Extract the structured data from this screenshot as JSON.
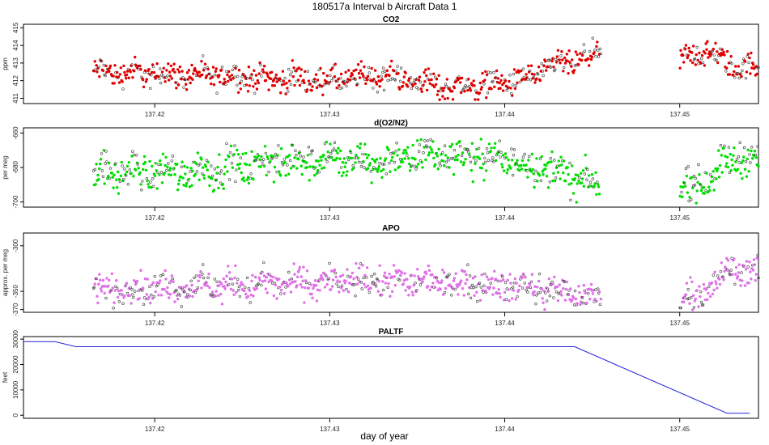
{
  "page": {
    "title": "180517a   Interval b Aircraft Data 1",
    "xlabel": "day of year"
  },
  "chart_data": [
    {
      "type": "scatter",
      "title": "CO2",
      "ylabel": "ppm",
      "color": "#e00000",
      "xlim": [
        137.4125,
        137.4545
      ],
      "ylim": [
        410.7,
        415.2
      ],
      "x_ticks": [
        "137.42",
        "137.43",
        "137.44",
        "137.45"
      ],
      "y_ticks": [
        "411",
        "412",
        "413",
        "414",
        "415"
      ],
      "gap": [
        137.4455,
        137.45
      ],
      "trend": [
        [
          137.4165,
          412.5
        ],
        [
          137.42,
          412.4
        ],
        [
          137.425,
          412.2
        ],
        [
          137.43,
          412.0
        ],
        [
          137.433,
          412.3
        ],
        [
          137.437,
          411.6
        ],
        [
          137.441,
          412.0
        ],
        [
          137.443,
          412.9
        ],
        [
          137.4445,
          413.2
        ],
        [
          137.4455,
          413.5
        ],
        [
          137.45,
          413.1
        ],
        [
          137.4515,
          413.7
        ],
        [
          137.453,
          412.8
        ],
        [
          137.4545,
          412.7
        ]
      ],
      "spread": 0.35
    },
    {
      "type": "scatter",
      "title": "d(O2/N2)",
      "ylabel": "per meg",
      "color": "#00dd00",
      "xlim": [
        137.4125,
        137.4545
      ],
      "ylim": [
        -703,
        -657
      ],
      "x_ticks": [
        "137.42",
        "137.43",
        "137.44",
        "137.45"
      ],
      "y_ticks": [
        "-660",
        "-680",
        "-700"
      ],
      "gap": [
        137.4455,
        137.45
      ],
      "trend": [
        [
          137.4165,
          -683
        ],
        [
          137.422,
          -682
        ],
        [
          137.426,
          -678
        ],
        [
          137.43,
          -674
        ],
        [
          137.432,
          -678
        ],
        [
          137.436,
          -672
        ],
        [
          137.44,
          -675
        ],
        [
          137.443,
          -682
        ],
        [
          137.4445,
          -688
        ],
        [
          137.4455,
          -694
        ],
        [
          137.45,
          -693
        ],
        [
          137.452,
          -684
        ],
        [
          137.453,
          -673
        ],
        [
          137.4545,
          -677
        ]
      ],
      "spread": 5
    },
    {
      "type": "scatter",
      "title": "APO",
      "ylabel": "approx. per meg",
      "color": "#e070e8",
      "xlim": [
        137.4125,
        137.4545
      ],
      "ylim": [
        -373,
        -286
      ],
      "x_ticks": [
        "137.42",
        "137.43",
        "137.44",
        "137.45"
      ],
      "y_ticks": [
        "-300",
        "-350",
        "-370"
      ],
      "gap": [
        137.4455,
        137.45
      ],
      "trend": [
        [
          137.4165,
          -348
        ],
        [
          137.422,
          -345
        ],
        [
          137.43,
          -340
        ],
        [
          137.436,
          -338
        ],
        [
          137.44,
          -343
        ],
        [
          137.443,
          -350
        ],
        [
          137.4455,
          -360
        ],
        [
          137.45,
          -362
        ],
        [
          137.452,
          -345
        ],
        [
          137.453,
          -322
        ],
        [
          137.4545,
          -332
        ]
      ],
      "spread": 8
    },
    {
      "type": "line",
      "title": "PALTF",
      "ylabel": "feet",
      "color": "#2020e0",
      "xlim": [
        137.4125,
        137.4545
      ],
      "ylim": [
        -1200,
        31000
      ],
      "x_ticks": [
        "137.42",
        "137.43",
        "137.44",
        "137.45"
      ],
      "y_ticks": [
        "0",
        "10000",
        "20000",
        "30000"
      ],
      "x": [
        137.4125,
        137.4143,
        137.4155,
        137.444,
        137.4527,
        137.454
      ],
      "y": [
        29000,
        29000,
        27000,
        27000,
        800,
        800
      ]
    }
  ]
}
